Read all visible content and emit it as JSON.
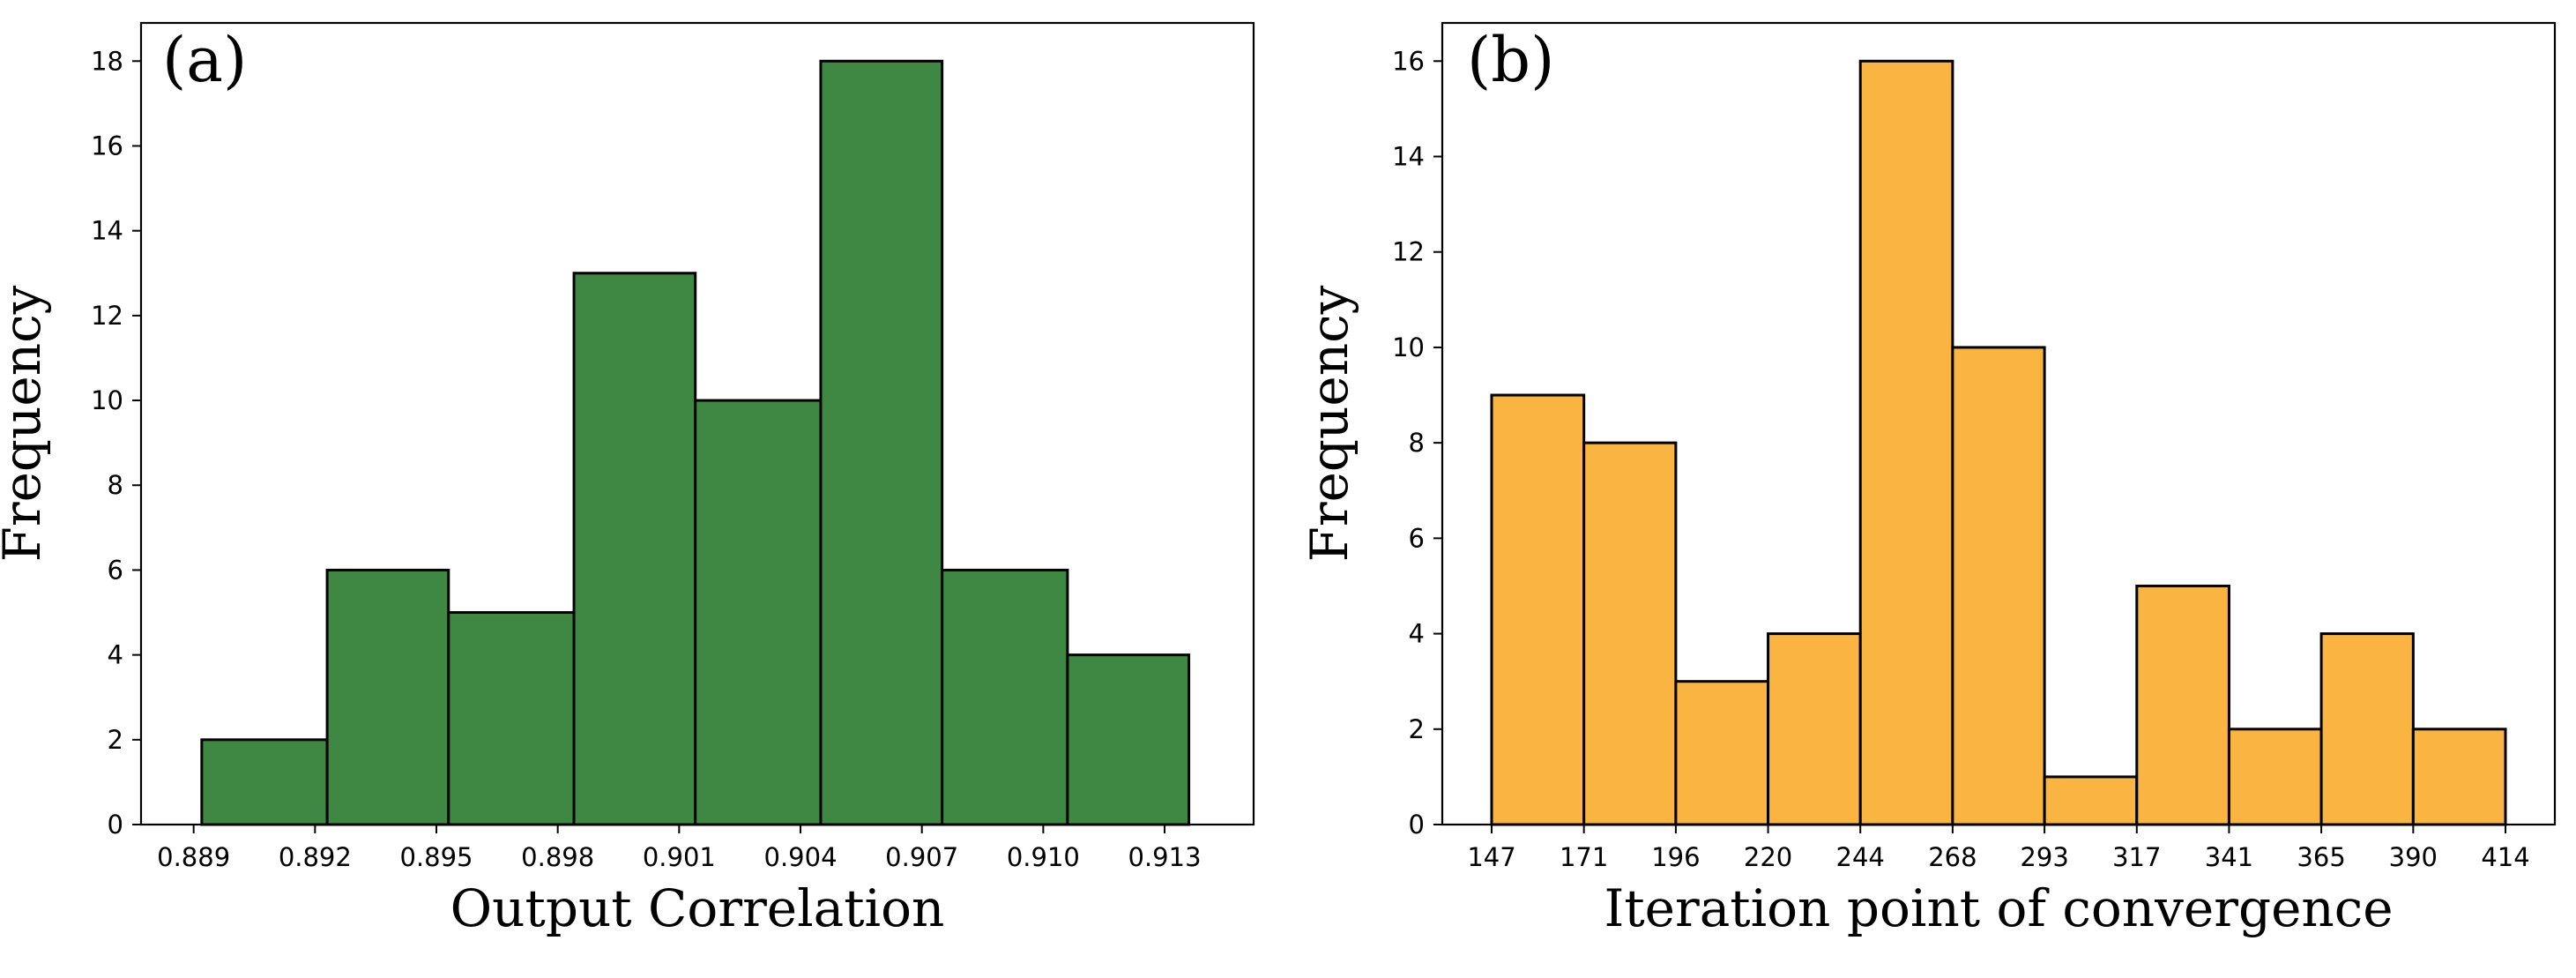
{
  "chart_data": [
    {
      "type": "bar",
      "panel_label": "(a)",
      "xlabel": "Output Correlation",
      "ylabel": "Frequency",
      "bin_edges": [
        0.8892,
        0.8923,
        0.8953,
        0.8984,
        0.9014,
        0.9045,
        0.9075,
        0.9106,
        0.9136
      ],
      "values": [
        2,
        6,
        5,
        13,
        10,
        18,
        6,
        4
      ],
      "xticks": [
        0.889,
        0.892,
        0.895,
        0.898,
        0.901,
        0.904,
        0.907,
        0.91,
        0.913
      ],
      "xtick_labels": [
        "0.889",
        "0.892",
        "0.895",
        "0.898",
        "0.901",
        "0.904",
        "0.907",
        "0.910",
        "0.913"
      ],
      "yticks": [
        0,
        2,
        4,
        6,
        8,
        10,
        12,
        14,
        16,
        18
      ],
      "ytick_labels": [
        "0",
        "2",
        "4",
        "6",
        "8",
        "10",
        "12",
        "14",
        "16",
        "18"
      ],
      "xlim": [
        0.8877,
        0.9152
      ],
      "ylim": [
        0,
        18.9
      ],
      "color": "#3f8843",
      "edgecolor": "#000000"
    },
    {
      "type": "bar",
      "panel_label": "(b)",
      "xlabel": "Iteration point of convergence",
      "ylabel": "Frequency",
      "bin_edges": [
        147,
        171.3,
        195.5,
        219.8,
        244.1,
        268.4,
        292.6,
        316.9,
        341.2,
        365.5,
        389.7,
        414
      ],
      "values": [
        9,
        8,
        3,
        4,
        16,
        10,
        1,
        5,
        2,
        4,
        2
      ],
      "xticks": [
        147,
        171.3,
        195.5,
        219.8,
        244.1,
        268.4,
        292.6,
        316.9,
        341.2,
        365.5,
        389.7,
        414
      ],
      "xtick_labels": [
        "147",
        "171",
        "196",
        "220",
        "244",
        "268",
        "293",
        "317",
        "341",
        "365",
        "390",
        "414"
      ],
      "yticks": [
        0,
        2,
        4,
        6,
        8,
        10,
        12,
        14,
        16
      ],
      "ytick_labels": [
        "0",
        "2",
        "4",
        "6",
        "8",
        "10",
        "12",
        "14",
        "16"
      ],
      "xlim": [
        134,
        427
      ],
      "ylim": [
        0,
        16.8
      ],
      "color": "#f9b442",
      "edgecolor": "#000000"
    }
  ]
}
